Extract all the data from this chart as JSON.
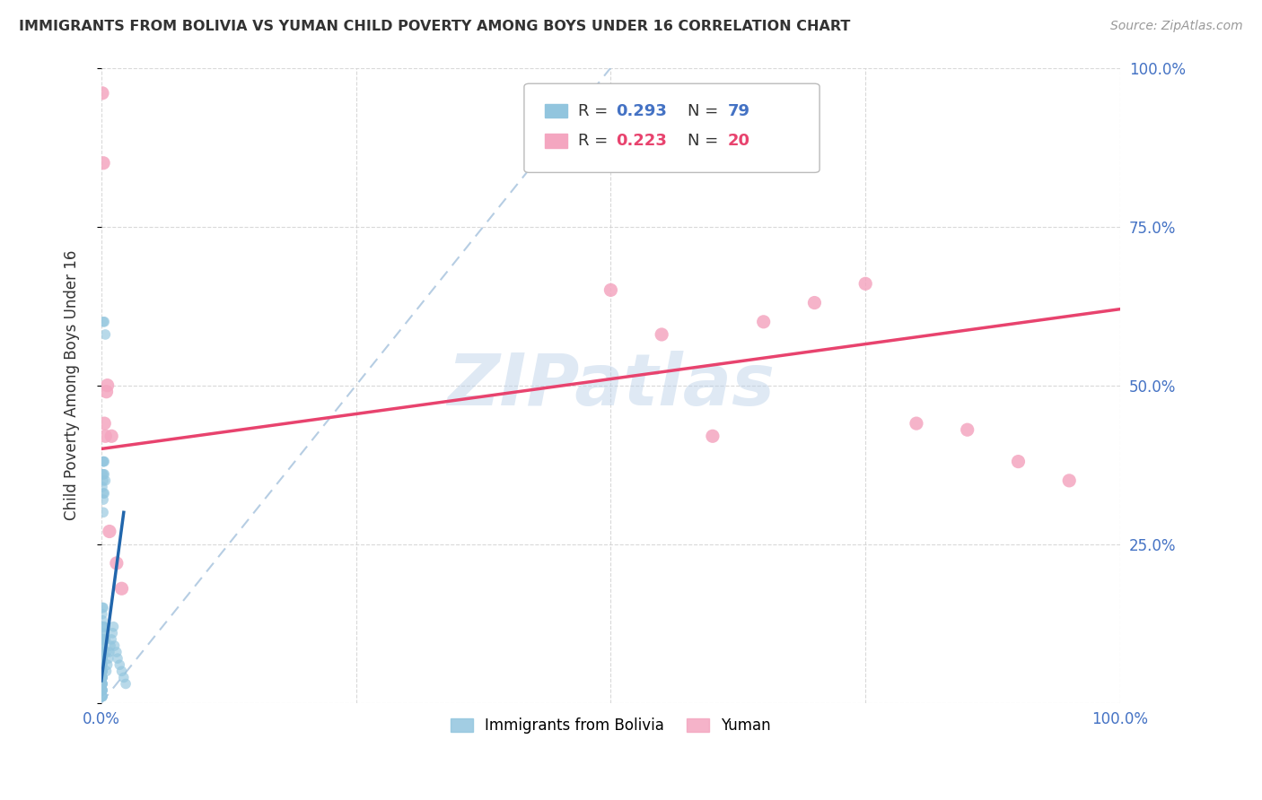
{
  "title": "IMMIGRANTS FROM BOLIVIA VS YUMAN CHILD POVERTY AMONG BOYS UNDER 16 CORRELATION CHART",
  "source": "Source: ZipAtlas.com",
  "ylabel": "Child Poverty Among Boys Under 16",
  "xlim": [
    0.0,
    1.0
  ],
  "ylim": [
    0.0,
    1.0
  ],
  "xticks": [
    0.0,
    0.25,
    0.5,
    0.75,
    1.0
  ],
  "yticks": [
    0.0,
    0.25,
    0.5,
    0.75,
    1.0
  ],
  "xtick_labels": [
    "0.0%",
    "",
    "",
    "",
    "100.0%"
  ],
  "ytick_labels": [
    "",
    "",
    "",
    "",
    ""
  ],
  "right_ytick_labels": [
    "",
    "25.0%",
    "50.0%",
    "75.0%",
    "100.0%"
  ],
  "watermark": "ZIPatlas",
  "legend_r1": "0.293",
  "legend_n1": "79",
  "legend_r2": "0.223",
  "legend_n2": "20",
  "blue_color": "#92c5de",
  "pink_color": "#f4a6c0",
  "blue_line_color": "#2166ac",
  "pink_line_color": "#e8436e",
  "blue_dash_color": "#aec8e0",
  "title_color": "#333333",
  "axis_label_color": "#333333",
  "tick_color_right": "#4472c4",
  "tick_color_bottom": "#4472c4",
  "grid_color": "#d0d0d0",
  "background_color": "#ffffff",
  "blue_scatter_x": [
    0.001,
    0.001,
    0.001,
    0.001,
    0.001,
    0.001,
    0.001,
    0.001,
    0.001,
    0.001,
    0.001,
    0.001,
    0.001,
    0.001,
    0.001,
    0.001,
    0.001,
    0.001,
    0.001,
    0.001,
    0.001,
    0.001,
    0.001,
    0.001,
    0.001,
    0.001,
    0.001,
    0.001,
    0.001,
    0.001,
    0.001,
    0.001,
    0.001,
    0.001,
    0.001,
    0.001,
    0.001,
    0.001,
    0.001,
    0.001,
    0.002,
    0.002,
    0.002,
    0.002,
    0.002,
    0.002,
    0.002,
    0.002,
    0.002,
    0.002,
    0.003,
    0.003,
    0.003,
    0.003,
    0.004,
    0.004,
    0.005,
    0.005,
    0.006,
    0.007,
    0.008,
    0.009,
    0.01,
    0.011,
    0.012,
    0.013,
    0.015,
    0.016,
    0.018,
    0.02,
    0.022,
    0.024,
    0.003,
    0.002,
    0.004,
    0.003,
    0.002,
    0.001,
    0.001
  ],
  "blue_scatter_y": [
    0.01,
    0.02,
    0.03,
    0.04,
    0.05,
    0.06,
    0.07,
    0.08,
    0.09,
    0.1,
    0.11,
    0.12,
    0.13,
    0.14,
    0.15,
    0.02,
    0.03,
    0.04,
    0.05,
    0.06,
    0.07,
    0.08,
    0.09,
    0.1,
    0.11,
    0.01,
    0.02,
    0.03,
    0.04,
    0.05,
    0.06,
    0.07,
    0.08,
    0.09,
    0.1,
    0.01,
    0.02,
    0.03,
    0.04,
    0.05,
    0.3,
    0.32,
    0.33,
    0.35,
    0.36,
    0.38,
    0.08,
    0.1,
    0.12,
    0.15,
    0.33,
    0.36,
    0.1,
    0.12,
    0.35,
    0.1,
    0.05,
    0.08,
    0.06,
    0.07,
    0.08,
    0.09,
    0.1,
    0.11,
    0.12,
    0.09,
    0.08,
    0.07,
    0.06,
    0.05,
    0.04,
    0.03,
    0.6,
    0.6,
    0.58,
    0.38,
    0.38,
    0.36,
    0.34
  ],
  "pink_scatter_x": [
    0.001,
    0.002,
    0.003,
    0.004,
    0.005,
    0.006,
    0.008,
    0.01,
    0.015,
    0.02,
    0.5,
    0.55,
    0.6,
    0.65,
    0.7,
    0.75,
    0.8,
    0.85,
    0.9,
    0.95
  ],
  "pink_scatter_y": [
    0.96,
    0.85,
    0.44,
    0.42,
    0.49,
    0.5,
    0.27,
    0.42,
    0.22,
    0.18,
    0.65,
    0.58,
    0.42,
    0.6,
    0.63,
    0.66,
    0.44,
    0.43,
    0.38,
    0.35
  ],
  "blue_line_x": [
    0.0,
    0.022
  ],
  "blue_line_y": [
    0.035,
    0.3
  ],
  "pink_line_x": [
    0.0,
    1.0
  ],
  "pink_line_y": [
    0.4,
    0.62
  ],
  "blue_dash_line_x": [
    0.0,
    0.5
  ],
  "blue_dash_line_y": [
    0.0,
    1.0
  ]
}
